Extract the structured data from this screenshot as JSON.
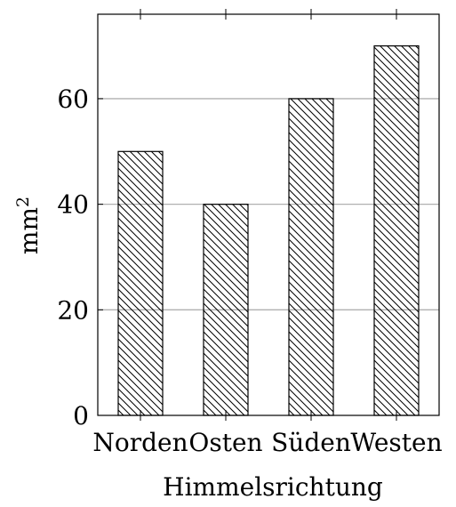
{
  "chart_data": {
    "type": "bar",
    "title": "",
    "xlabel": "Himmelsrichtung",
    "ylabel_base": "mm",
    "ylabel_superscript": "2",
    "categories": [
      "Norden",
      "Osten",
      "Süden",
      "Westen"
    ],
    "series": [
      {
        "values": [
          50,
          40,
          60,
          70
        ]
      }
    ],
    "ylim": [
      0,
      76
    ],
    "yticks": [
      "0",
      "20",
      "40",
      "60"
    ],
    "grid": "horizontal",
    "bar_fill_pattern": "diagonal-hatch",
    "colors": {
      "bar_stroke": "#000000",
      "hatch": "#000000",
      "grid": "#b0b0b0",
      "axis": "#000000"
    }
  }
}
